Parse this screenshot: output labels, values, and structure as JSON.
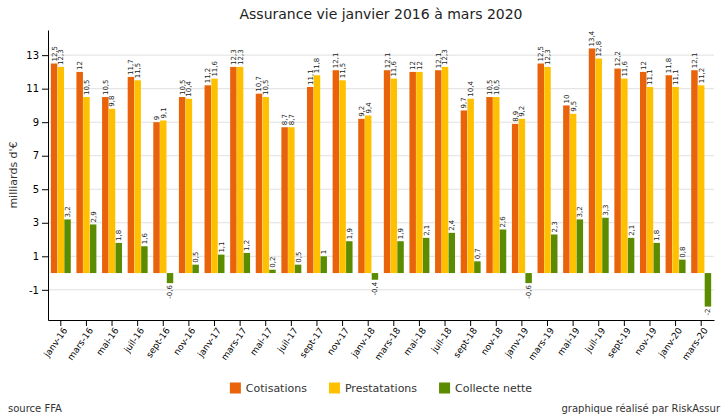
{
  "chart_data": {
    "type": "bar",
    "title": "Assurance vie janvier 2016 à mars 2020",
    "y_label": "milliards d'€",
    "annotations": [
      "source FFA",
      "graphique réalisé par RiskAssur"
    ],
    "categories": [
      "janv-16",
      "mars-16",
      "mai-16",
      "juil-16",
      "sept-16",
      "nov-16",
      "janv-17",
      "mars-17",
      "mai-17",
      "juil-17",
      "sept-17",
      "nov-17",
      "janv-18",
      "mars-18",
      "mai-18",
      "juil-18",
      "sept-18",
      "nov-18",
      "janv-19",
      "mars-19",
      "mai-19",
      "juil-19",
      "sept-19",
      "nov-19",
      "janv-20",
      "mars-20"
    ],
    "series": [
      {
        "name": "Cotisations",
        "color": "#E8630A",
        "values": [
          12.5,
          12.0,
          10.5,
          11.7,
          9.0,
          10.5,
          11.2,
          12.3,
          10.7,
          8.7,
          11.1,
          12.1,
          9.2,
          12.1,
          12.0,
          12.1,
          9.7,
          10.5,
          8.9,
          12.5,
          10.0,
          13.4,
          12.2,
          12.0,
          11.8,
          12.1
        ],
        "value_labels": [
          "12,5",
          "12",
          "10,5",
          "11,7",
          "9",
          "10,5",
          "11,2",
          "12,3",
          "10,7",
          "8,7",
          "11,1",
          "12,1",
          "9,2",
          "12,1",
          "12",
          "12,1",
          "9,7",
          "10,5",
          "8,9",
          "12,5",
          "10",
          "13,4",
          "12,2",
          "12",
          "11,8",
          "12,1"
        ]
      },
      {
        "name": "Prestatations",
        "color": "#FFC000",
        "values": [
          12.3,
          10.5,
          9.8,
          11.5,
          9.1,
          10.4,
          11.6,
          12.3,
          10.5,
          8.7,
          11.8,
          11.5,
          9.4,
          11.6,
          12.0,
          12.3,
          10.4,
          10.5,
          9.2,
          12.3,
          9.5,
          12.8,
          11.6,
          11.1,
          11.1,
          11.2
        ],
        "value_labels": [
          "12,3",
          "10,5",
          "9,8",
          "11,5",
          "9,1",
          "10,4",
          "11,6",
          "12,3",
          "10,5",
          "8,7",
          "11,8",
          "11,5",
          "9,4",
          "11,6",
          "12",
          "12,3",
          "10,4",
          "10,5",
          "9,2",
          "12,3",
          "9,5",
          "12,8",
          "11,6",
          "11,1",
          "11,1",
          "11,2"
        ]
      },
      {
        "name": "Collecte nette",
        "color": "#5B8C00",
        "values": [
          3.2,
          2.9,
          1.8,
          1.6,
          -0.6,
          0.5,
          1.1,
          1.2,
          0.2,
          0.5,
          1.0,
          1.9,
          -0.4,
          1.9,
          2.1,
          2.4,
          0.7,
          2.6,
          -0.6,
          2.3,
          3.2,
          3.3,
          2.1,
          1.8,
          0.8,
          -2.0
        ],
        "value_labels": [
          "3,2",
          "2,9",
          "1,8",
          "1,6",
          "-0,6",
          "0,5",
          "1,1",
          "1,2",
          "0,2",
          "0,5",
          "1",
          "1,9",
          "-0,4",
          "1,9",
          "2,1",
          "2,4",
          "0,7",
          "2,6",
          "-0,6",
          "2,3",
          "3,2",
          "3,3",
          "2,1",
          "1,8",
          "0,8",
          "-2"
        ]
      }
    ],
    "ylim": [
      -2.8,
      14.5
    ],
    "yticks": [
      -1,
      1,
      3,
      5,
      7,
      9,
      11,
      13
    ],
    "grid": true,
    "legend": "bottom",
    "data_labels": true
  }
}
